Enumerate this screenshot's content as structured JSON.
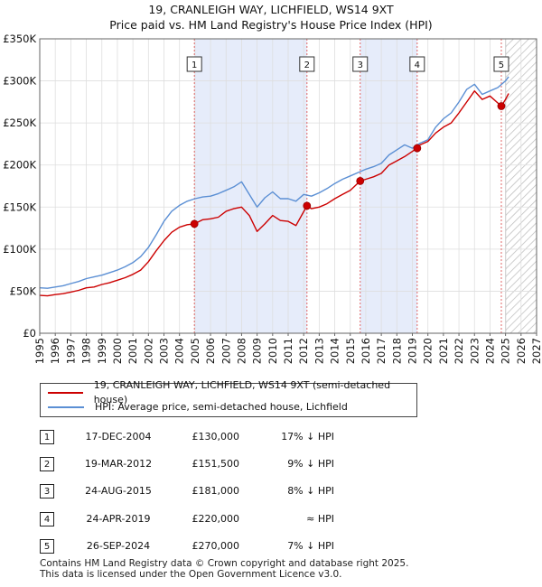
{
  "title": "19, CRANLEIGH WAY, LICHFIELD, WS14 9XT",
  "subtitle": "Price paid vs. HM Land Registry's House Price Index (HPI)",
  "chart_data": {
    "type": "line",
    "title": "19, CRANLEIGH WAY, LICHFIELD, WS14 9XT",
    "subtitle": "Price paid vs. HM Land Registry's House Price Index (HPI)",
    "xlabel": "",
    "ylabel": "",
    "xlim": [
      1995,
      2027
    ],
    "ylim": [
      0,
      350000
    ],
    "x_ticks": [
      1995,
      1996,
      1997,
      1998,
      1999,
      2000,
      2001,
      2002,
      2003,
      2004,
      2005,
      2006,
      2007,
      2008,
      2009,
      2010,
      2011,
      2012,
      2013,
      2014,
      2015,
      2016,
      2017,
      2018,
      2019,
      2020,
      2021,
      2022,
      2023,
      2024,
      2025,
      2026,
      2027
    ],
    "y_ticks": [
      {
        "value": 0,
        "label": "£0"
      },
      {
        "value": 50000,
        "label": "£50K"
      },
      {
        "value": 100000,
        "label": "£100K"
      },
      {
        "value": 150000,
        "label": "£150K"
      },
      {
        "value": 200000,
        "label": "£200K"
      },
      {
        "value": 250000,
        "label": "£250K"
      },
      {
        "value": 300000,
        "label": "£300K"
      },
      {
        "value": 350000,
        "label": "£350K"
      }
    ],
    "grid": true,
    "forecast_hatch_from": 2025.0,
    "legend_position": "below",
    "series": [
      {
        "name": "19, CRANLEIGH WAY, LICHFIELD, WS14 9XT (semi-detached house)",
        "color": "#cc0000",
        "x": [
          1995,
          1995.5,
          1996,
          1996.5,
          1997,
          1997.5,
          1998,
          1998.5,
          1999,
          1999.5,
          2000,
          2000.5,
          2001,
          2001.5,
          2002,
          2002.5,
          2003,
          2003.5,
          2004,
          2004.5,
          2004.96,
          2005.5,
          2006,
          2006.5,
          2007,
          2007.5,
          2008,
          2008.5,
          2009,
          2009.5,
          2010,
          2010.5,
          2011,
          2011.5,
          2012.21,
          2012.5,
          2013,
          2013.5,
          2014,
          2014.5,
          2015,
          2015.64,
          2016,
          2016.5,
          2017,
          2017.5,
          2018,
          2018.5,
          2019.31,
          2019.5,
          2020,
          2020.5,
          2021,
          2021.5,
          2022,
          2022.5,
          2023,
          2023.5,
          2024,
          2024.73,
          2025,
          2025.2
        ],
        "y": [
          45000,
          44500,
          46000,
          47000,
          49000,
          51000,
          54000,
          55000,
          58000,
          60000,
          63000,
          66000,
          70000,
          75000,
          85000,
          98000,
          110000,
          120000,
          126000,
          129000,
          130000,
          135000,
          136000,
          138000,
          145000,
          148000,
          150000,
          140000,
          121000,
          130000,
          140000,
          134000,
          133000,
          128000,
          151500,
          148000,
          150000,
          154000,
          160000,
          165000,
          170000,
          181000,
          183000,
          186000,
          190000,
          200000,
          205000,
          210000,
          220000,
          224000,
          228000,
          238000,
          245000,
          250000,
          262000,
          275000,
          288000,
          278000,
          282000,
          270000,
          278000,
          285000
        ]
      },
      {
        "name": "HPI: Average price, semi-detached house, Lichfield",
        "color": "#5b8fd4",
        "x": [
          1995,
          1995.5,
          1996,
          1996.5,
          1997,
          1997.5,
          1998,
          1998.5,
          1999,
          1999.5,
          2000,
          2000.5,
          2001,
          2001.5,
          2002,
          2002.5,
          2003,
          2003.5,
          2004,
          2004.5,
          2005,
          2005.5,
          2006,
          2006.5,
          2007,
          2007.5,
          2008,
          2008.5,
          2009,
          2009.5,
          2010,
          2010.5,
          2011,
          2011.5,
          2012,
          2012.5,
          2013,
          2013.5,
          2014,
          2014.5,
          2015,
          2015.5,
          2016,
          2016.5,
          2017,
          2017.5,
          2018,
          2018.5,
          2019,
          2019.5,
          2020,
          2020.5,
          2021,
          2021.5,
          2022,
          2022.5,
          2023,
          2023.5,
          2024,
          2024.5,
          2025,
          2025.2
        ],
        "y": [
          54000,
          53500,
          55000,
          56500,
          59000,
          61500,
          65000,
          67000,
          69000,
          72000,
          75000,
          79000,
          84000,
          91000,
          102000,
          117000,
          133000,
          145000,
          152000,
          157000,
          160000,
          162000,
          163000,
          166000,
          170000,
          174000,
          180000,
          165000,
          150000,
          161000,
          168000,
          160000,
          160000,
          157000,
          165000,
          163000,
          167000,
          172000,
          178000,
          183000,
          187000,
          191000,
          195000,
          198000,
          202000,
          212000,
          218000,
          224000,
          220000,
          226000,
          230000,
          245000,
          255000,
          262000,
          275000,
          290000,
          296000,
          284000,
          288000,
          292000,
          300000,
          305000
        ]
      }
    ],
    "sales": [
      {
        "label": "1",
        "x": 2004.96,
        "y": 130000
      },
      {
        "label": "2",
        "x": 2012.21,
        "y": 151500
      },
      {
        "label": "3",
        "x": 2015.64,
        "y": 181000
      },
      {
        "label": "4",
        "x": 2019.31,
        "y": 220000
      },
      {
        "label": "5",
        "x": 2024.73,
        "y": 270000
      }
    ],
    "shaded_spans": [
      [
        2004.96,
        2012.21
      ],
      [
        2015.64,
        2019.31
      ]
    ]
  },
  "legend": {
    "property_label": "19, CRANLEIGH WAY, LICHFIELD, WS14 9XT (semi-detached house)",
    "hpi_label": "HPI: Average price, semi-detached house, Lichfield"
  },
  "sales_table": [
    {
      "num": "1",
      "date": "17-DEC-2004",
      "price": "£130,000",
      "relation": "17% ↓ HPI"
    },
    {
      "num": "2",
      "date": "19-MAR-2012",
      "price": "£151,500",
      "relation": "9% ↓ HPI"
    },
    {
      "num": "3",
      "date": "24-AUG-2015",
      "price": "£181,000",
      "relation": "8% ↓ HPI"
    },
    {
      "num": "4",
      "date": "24-APR-2019",
      "price": "£220,000",
      "relation": "≈ HPI"
    },
    {
      "num": "5",
      "date": "26-SEP-2024",
      "price": "£270,000",
      "relation": "7% ↓ HPI"
    }
  ],
  "footer": {
    "line1": "Contains HM Land Registry data © Crown copyright and database right 2025.",
    "line2": "This data is licensed under the Open Government Licence v3.0."
  }
}
